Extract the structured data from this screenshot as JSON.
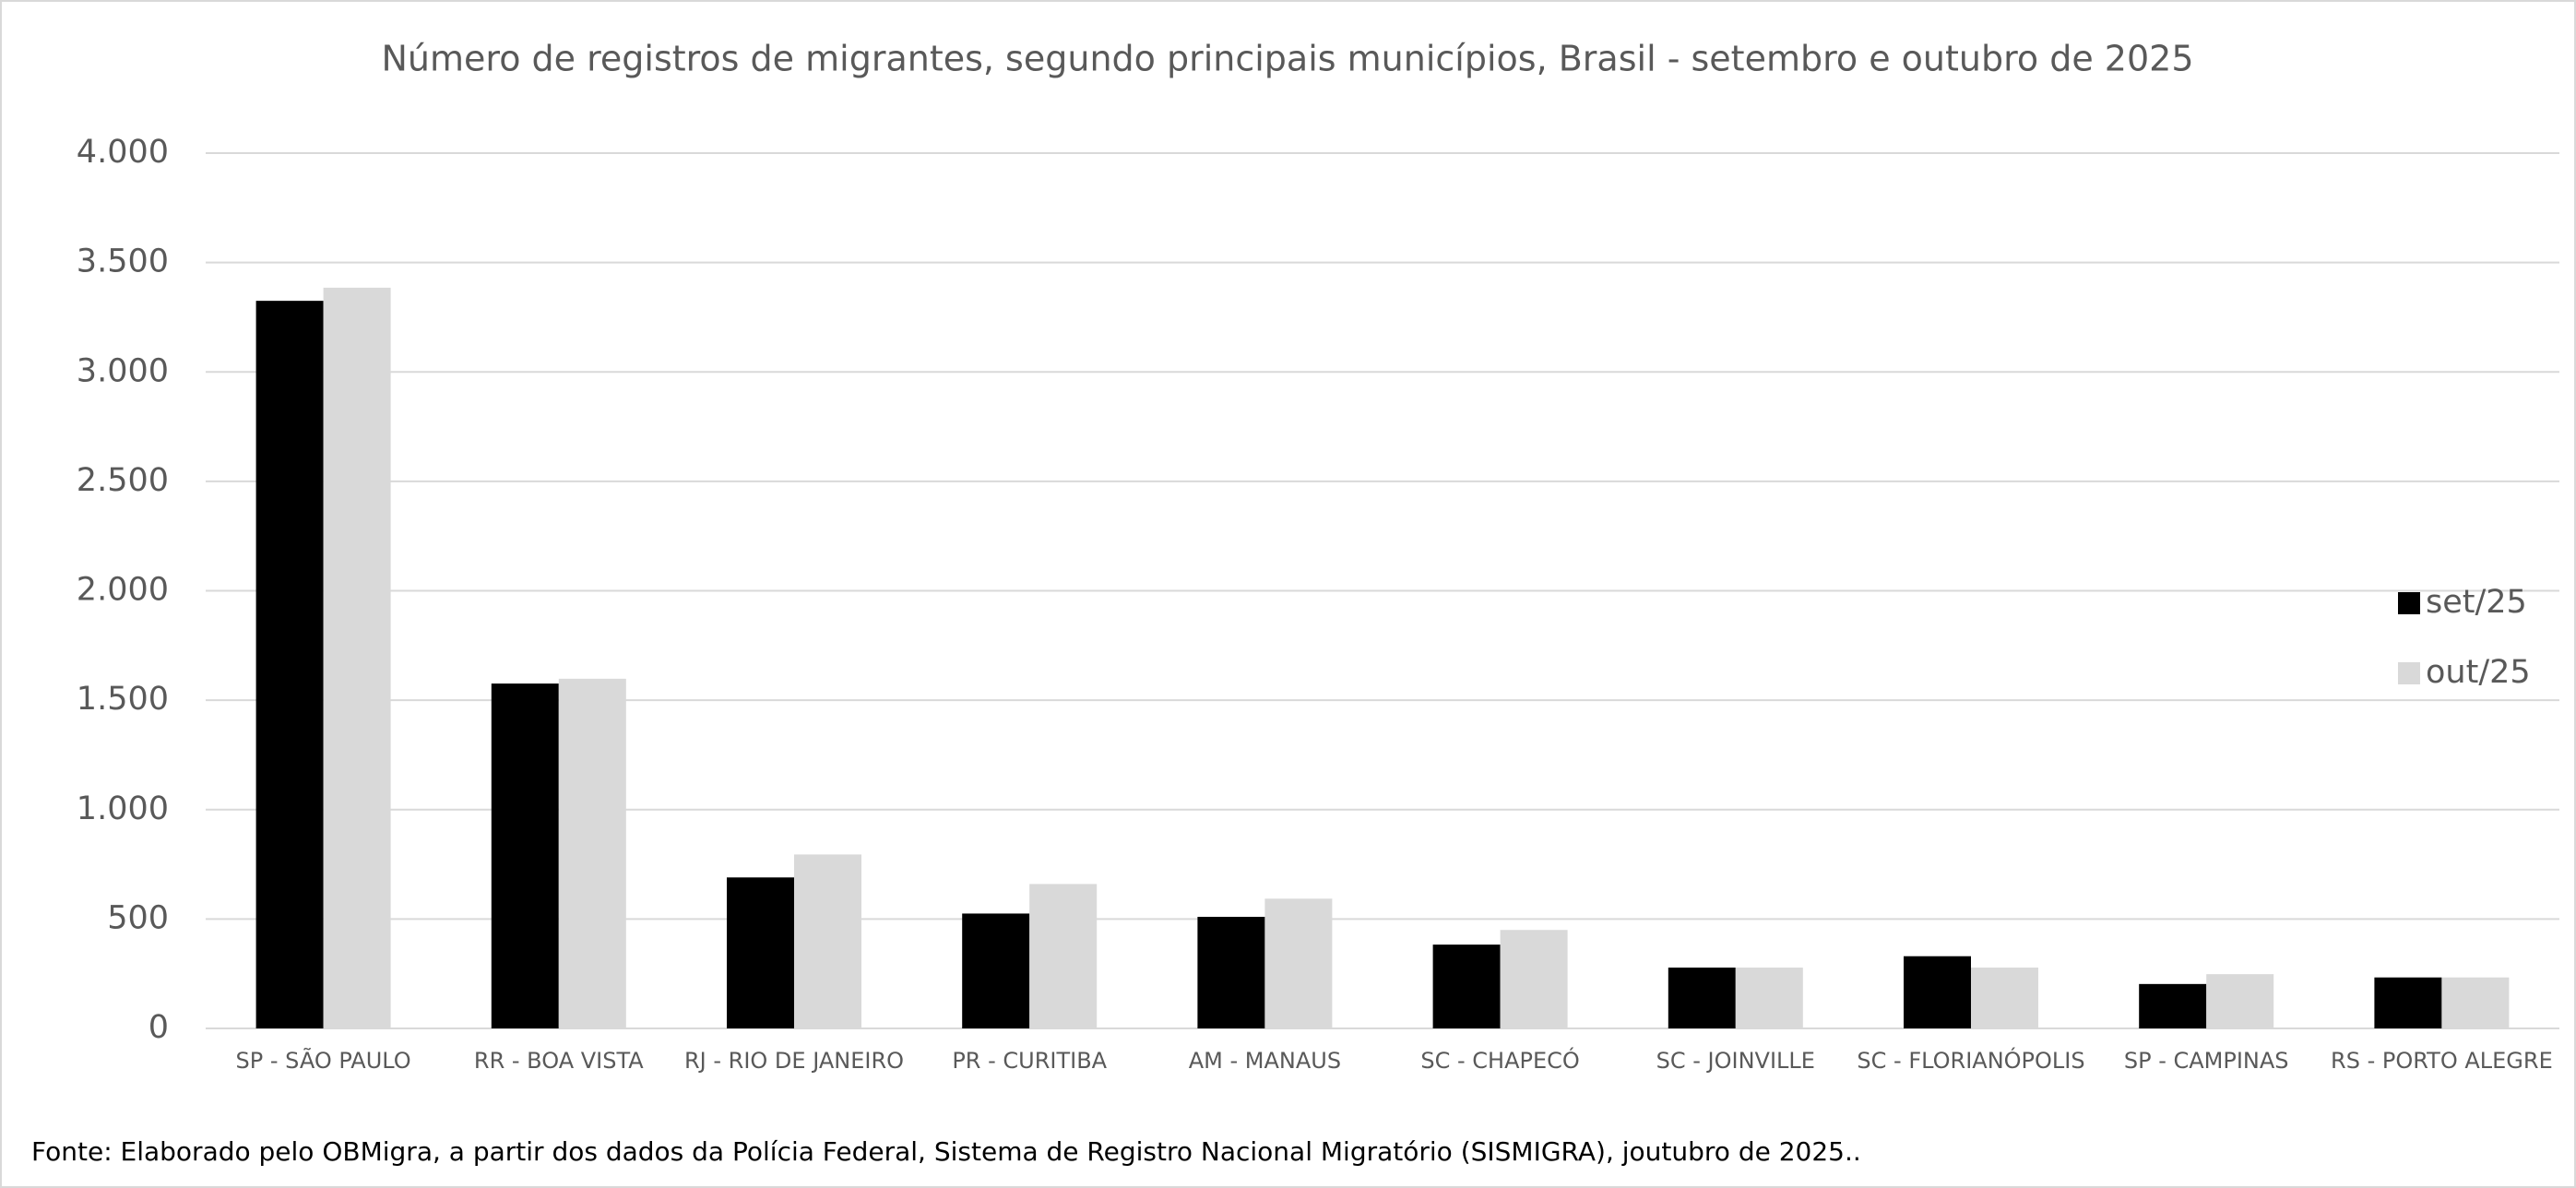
{
  "chart_data": {
    "type": "bar",
    "title": "Número de registros de migrantes, segundo principais municípios, Brasil - setembro e outubro de 2025",
    "categories": [
      "SP - SÃO PAULO",
      "RR - BOA VISTA",
      "RJ - RIO DE JANEIRO",
      "PR - CURITIBA",
      "AM - MANAUS",
      "SC - CHAPECÓ",
      "SC - JOINVILLE",
      "SC - FLORIANÓPOLIS",
      "SP - CAMPINAS",
      "RS - PORTO ALEGRE"
    ],
    "series": [
      {
        "name": "set/25",
        "color": "#000000",
        "values": [
          3325,
          1576,
          690,
          525,
          510,
          383,
          278,
          330,
          203,
          233
        ]
      },
      {
        "name": "out/25",
        "color": "#d9d9d9",
        "values": [
          3385,
          1598,
          795,
          660,
          593,
          450,
          278,
          278,
          248,
          233
        ]
      }
    ],
    "ylim": [
      0,
      4000
    ],
    "yticks": [
      0,
      500,
      {
        "value": 1000,
        "label": "1.000"
      },
      {
        "value": 1500,
        "label": "1.500"
      },
      {
        "value": 2000,
        "label": "2.000"
      },
      {
        "value": 2500,
        "label": "2.500"
      },
      {
        "value": 3000,
        "label": "3.000"
      },
      {
        "value": 3500,
        "label": "3.500"
      },
      {
        "value": 4000,
        "label": "4.000"
      }
    ],
    "grid": true,
    "legend": "right",
    "source": "Fonte: Elaborado pelo OBMigra, a partir dos dados da Polícia Federal, Sistema de Registro Nacional Migratório (SISMIGRA), joutubro de 2025.."
  }
}
